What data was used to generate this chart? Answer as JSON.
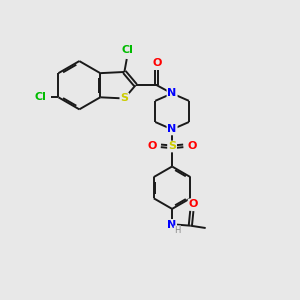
{
  "background_color": "#e8e8e8",
  "bond_color": "#1a1a1a",
  "colors": {
    "Cl": "#00bb00",
    "N": "#0000ff",
    "O": "#ff0000",
    "S_thio": "#cccc00",
    "S_sul": "#cccc00",
    "H": "#888888",
    "C": "#1a1a1a"
  },
  "figsize": [
    3.0,
    3.0
  ],
  "dpi": 100
}
